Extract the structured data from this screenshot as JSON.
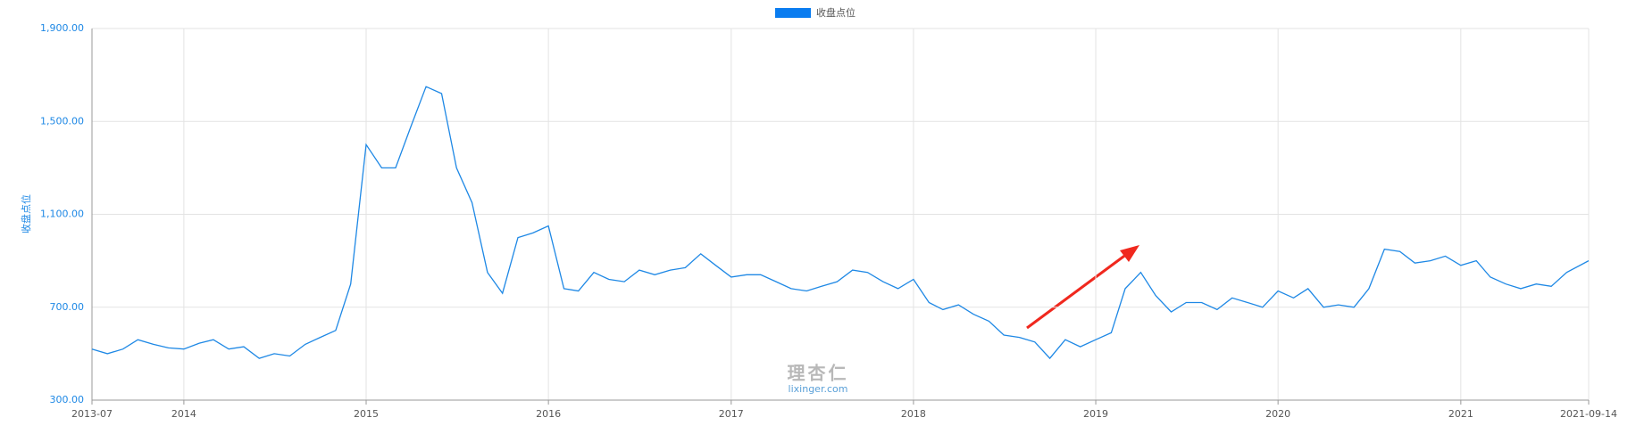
{
  "chart_data": {
    "type": "line",
    "y_label": "收盘点位",
    "watermark": {
      "title": "理杏仁",
      "site": "lixinger.com"
    },
    "x": [
      "2013-07",
      "2013-08",
      "2013-09",
      "2013-10",
      "2013-11",
      "2013-12",
      "2014-01",
      "2014-02",
      "2014-03",
      "2014-04",
      "2014-05",
      "2014-06",
      "2014-07",
      "2014-08",
      "2014-09",
      "2014-10",
      "2014-11",
      "2014-12",
      "2015-01",
      "2015-02",
      "2015-03",
      "2015-04",
      "2015-05",
      "2015-06",
      "2015-07",
      "2015-08",
      "2015-09",
      "2015-10",
      "2015-11",
      "2015-12",
      "2016-01",
      "2016-02",
      "2016-03",
      "2016-04",
      "2016-05",
      "2016-06",
      "2016-07",
      "2016-08",
      "2016-09",
      "2016-10",
      "2016-11",
      "2016-12",
      "2017-01",
      "2017-02",
      "2017-03",
      "2017-04",
      "2017-05",
      "2017-06",
      "2017-07",
      "2017-08",
      "2017-09",
      "2017-10",
      "2017-11",
      "2017-12",
      "2018-01",
      "2018-02",
      "2018-03",
      "2018-04",
      "2018-05",
      "2018-06",
      "2018-07",
      "2018-08",
      "2018-09",
      "2018-10",
      "2018-11",
      "2018-12",
      "2019-01",
      "2019-02",
      "2019-03",
      "2019-04",
      "2019-05",
      "2019-06",
      "2019-07",
      "2019-08",
      "2019-09",
      "2019-10",
      "2019-11",
      "2019-12",
      "2020-01",
      "2020-02",
      "2020-03",
      "2020-04",
      "2020-05",
      "2020-06",
      "2020-07",
      "2020-08",
      "2020-09",
      "2020-10",
      "2020-11",
      "2020-12",
      "2021-01",
      "2021-02",
      "2021-03",
      "2021-04",
      "2021-05",
      "2021-06",
      "2021-07",
      "2021-08",
      "2021-09-14"
    ],
    "series": [
      {
        "name": "收盘点位",
        "color": "#1e88e5",
        "legend_color": "#0a7cf0",
        "values": [
          520,
          500,
          520,
          560,
          540,
          525,
          520,
          545,
          560,
          520,
          530,
          480,
          500,
          490,
          540,
          570,
          600,
          800,
          1400,
          1300,
          1300,
          1480,
          1650,
          1620,
          1300,
          1150,
          850,
          760,
          1000,
          1020,
          1050,
          780,
          770,
          850,
          820,
          810,
          860,
          840,
          860,
          870,
          930,
          880,
          830,
          840,
          840,
          810,
          780,
          770,
          790,
          810,
          860,
          850,
          810,
          780,
          820,
          720,
          690,
          710,
          670,
          640,
          580,
          570,
          550,
          480,
          560,
          530,
          560,
          590,
          780,
          850,
          750,
          680,
          720,
          720,
          690,
          740,
          720,
          700,
          770,
          740,
          780,
          700,
          710,
          700,
          780,
          950,
          940,
          890,
          900,
          920,
          880,
          900,
          830,
          800,
          780,
          800,
          790,
          850,
          900
        ]
      }
    ],
    "xlim": [
      "2013-07",
      "2021-09-14"
    ],
    "xticks": [
      "2013-07",
      "2014",
      "2015",
      "2016",
      "2017",
      "2018",
      "2019",
      "2020",
      "2021",
      "2021-09-14"
    ],
    "ylim": [
      300,
      1900
    ],
    "yticks": [
      {
        "value": 300,
        "label": "300.00"
      },
      {
        "value": 700,
        "label": "700.00"
      },
      {
        "value": 1100,
        "label": "1,100.00"
      },
      {
        "value": 1500,
        "label": "1,500.00"
      },
      {
        "value": 1900,
        "label": "1,900.00"
      }
    ],
    "grid": true
  }
}
